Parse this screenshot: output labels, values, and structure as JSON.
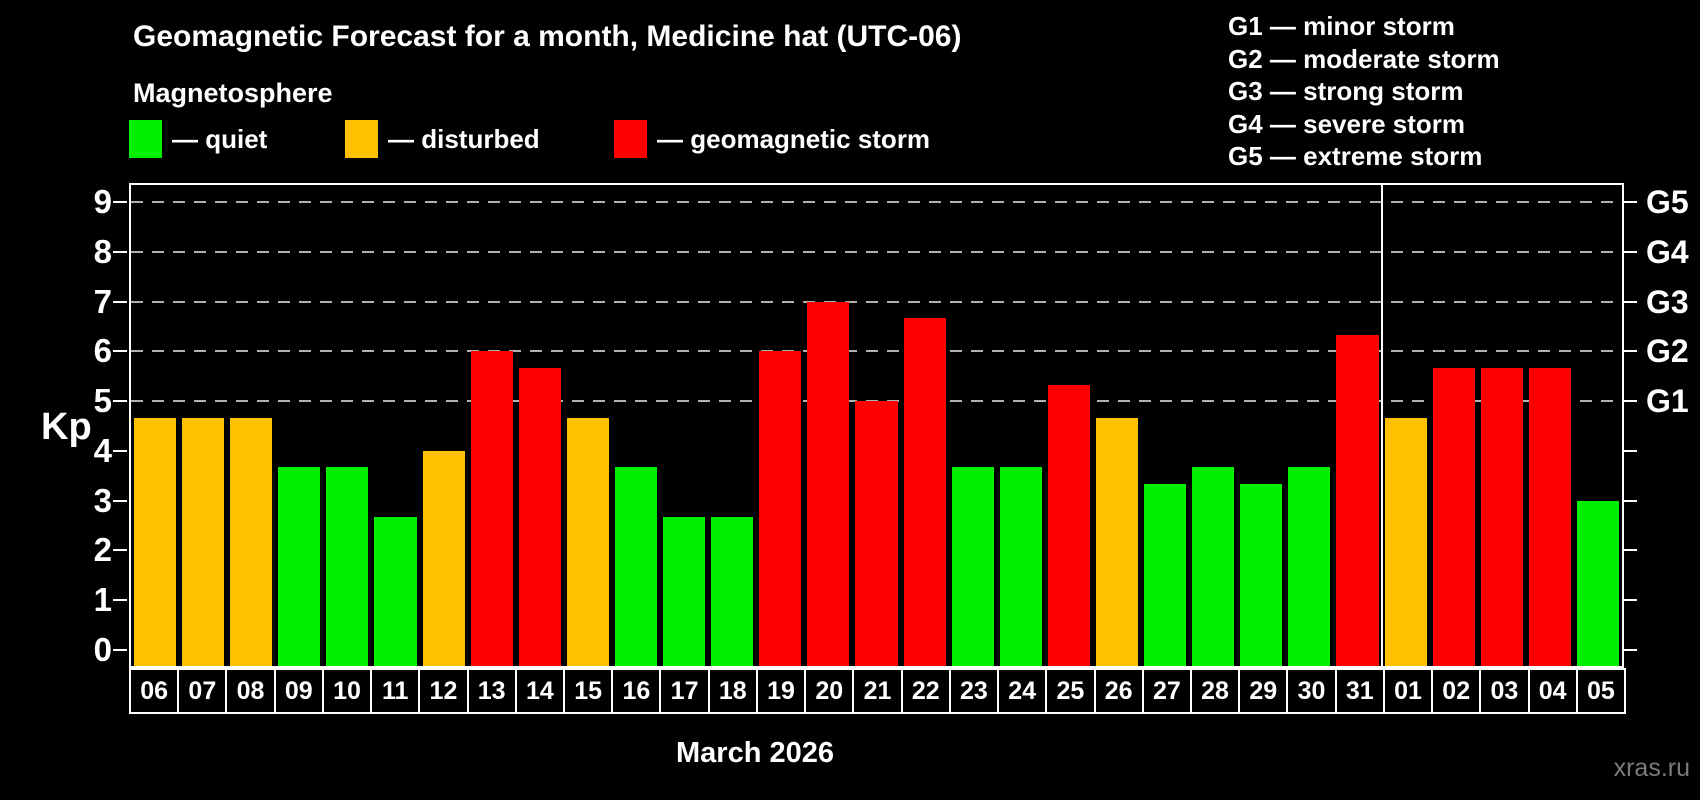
{
  "header": {
    "title": "Geomagnetic Forecast for a month, Medicine hat (UTC-06)",
    "subtitle": "Magnetosphere"
  },
  "legend": {
    "items": [
      {
        "key": "quiet",
        "label": "— quiet",
        "color": "#00f000"
      },
      {
        "key": "disturbed",
        "label": "— disturbed",
        "color": "#ffc000"
      },
      {
        "key": "storm",
        "label": "— geomagnetic storm",
        "color": "#ff0000"
      }
    ]
  },
  "gscale_legend": {
    "items": [
      "G1 — minor storm",
      "G2 — moderate storm",
      "G3 — strong storm",
      "G4 — severe storm",
      "G5 — extreme storm"
    ]
  },
  "chart_data": {
    "type": "bar",
    "title": "Geomagnetic Forecast for a month, Medicine hat (UTC-06)",
    "ylabel": "Kp",
    "xlabel": "March 2026",
    "ylim": [
      0,
      9
    ],
    "yticks": [
      0,
      1,
      2,
      3,
      4,
      5,
      6,
      7,
      8,
      9
    ],
    "grid_levels": [
      5,
      6,
      7,
      8,
      9
    ],
    "grid_style": "dashed",
    "legend_position": "top",
    "right_axis": [
      {
        "kp": 5,
        "label": "G1"
      },
      {
        "kp": 6,
        "label": "G2"
      },
      {
        "kp": 7,
        "label": "G3"
      },
      {
        "kp": 8,
        "label": "G4"
      },
      {
        "kp": 9,
        "label": "G5"
      }
    ],
    "categories": [
      "06",
      "07",
      "08",
      "09",
      "10",
      "11",
      "12",
      "13",
      "14",
      "15",
      "16",
      "17",
      "18",
      "19",
      "20",
      "21",
      "22",
      "23",
      "24",
      "25",
      "26",
      "27",
      "28",
      "29",
      "30",
      "31",
      "01",
      "02",
      "03",
      "04",
      "05"
    ],
    "values": [
      4.67,
      4.67,
      4.67,
      3.67,
      3.67,
      2.67,
      4.0,
      6.0,
      5.67,
      4.67,
      3.67,
      2.67,
      2.67,
      6.0,
      7.0,
      5.0,
      6.67,
      3.67,
      3.67,
      5.33,
      4.67,
      3.33,
      3.67,
      3.33,
      3.67,
      6.33,
      4.67,
      5.67,
      5.67,
      5.67,
      3.0
    ],
    "statuses": [
      "disturbed",
      "disturbed",
      "disturbed",
      "quiet",
      "quiet",
      "quiet",
      "disturbed",
      "storm",
      "storm",
      "disturbed",
      "quiet",
      "quiet",
      "quiet",
      "storm",
      "storm",
      "storm",
      "storm",
      "quiet",
      "quiet",
      "storm",
      "disturbed",
      "quiet",
      "quiet",
      "quiet",
      "quiet",
      "storm",
      "disturbed",
      "storm",
      "storm",
      "storm",
      "quiet"
    ],
    "status_colors": {
      "quiet": "#00f000",
      "disturbed": "#ffc000",
      "storm": "#ff0000"
    },
    "month_boundary_after_index": 25
  },
  "footer": {
    "xaxis_label": "March 2026",
    "watermark": "xras.ru"
  }
}
